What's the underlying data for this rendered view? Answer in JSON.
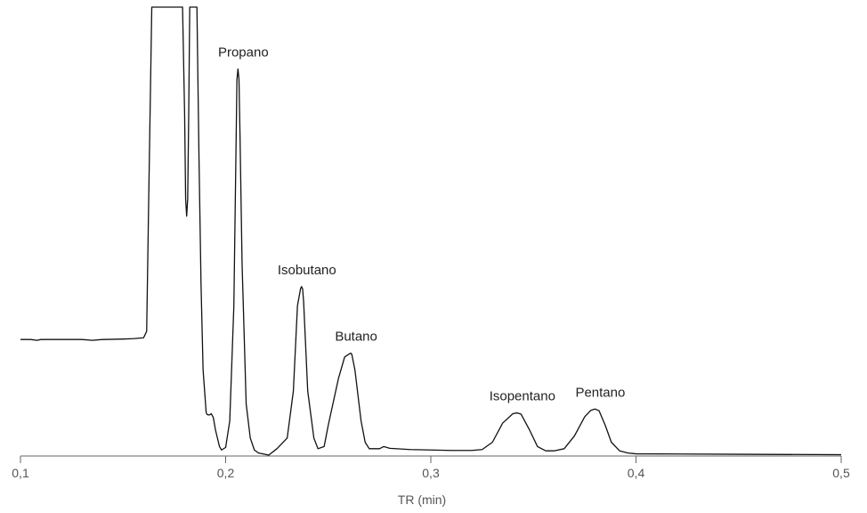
{
  "chart_data": {
    "type": "line",
    "title": "",
    "xlabel": "TR (min)",
    "ylabel": "",
    "xlim": [
      0.1,
      0.5
    ],
    "ylim": [
      0,
      1.05
    ],
    "x_ticks": [
      {
        "value": 0.1,
        "label": "0,1"
      },
      {
        "value": 0.2,
        "label": "0,2"
      },
      {
        "value": 0.3,
        "label": "0,3"
      },
      {
        "value": 0.4,
        "label": "0,4"
      },
      {
        "value": 0.5,
        "label": "0,5"
      }
    ],
    "grid": false,
    "y_axis_visible": false,
    "series": [
      {
        "x": [
          0.1,
          0.105,
          0.108,
          0.11,
          0.12,
          0.13,
          0.135,
          0.14,
          0.15,
          0.155,
          0.16,
          0.1615,
          0.1625,
          0.164,
          0.175,
          0.179,
          0.18,
          0.1805,
          0.181,
          0.1815,
          0.182,
          0.1825,
          0.1835,
          0.1845,
          0.186,
          0.187,
          0.188,
          0.189,
          0.1905,
          0.191,
          0.192,
          0.193,
          0.194,
          0.195,
          0.196,
          0.197,
          0.198,
          0.2,
          0.202,
          0.204,
          0.205,
          0.2055,
          0.206,
          0.2065,
          0.207,
          0.208,
          0.21,
          0.212,
          0.214,
          0.216,
          0.219,
          0.221,
          0.225,
          0.23,
          0.233,
          0.235,
          0.2365,
          0.237,
          0.2375,
          0.238,
          0.24,
          0.243,
          0.245,
          0.248,
          0.25,
          0.255,
          0.258,
          0.2605,
          0.261,
          0.2615,
          0.263,
          0.266,
          0.268,
          0.27,
          0.275,
          0.277,
          0.28,
          0.29,
          0.3,
          0.31,
          0.32,
          0.325,
          0.33,
          0.335,
          0.34,
          0.342,
          0.344,
          0.348,
          0.352,
          0.356,
          0.36,
          0.365,
          0.37,
          0.375,
          0.378,
          0.38,
          0.382,
          0.385,
          0.388,
          0.392,
          0.396,
          0.4,
          0.45,
          0.5
        ],
        "y": [
          0.271,
          0.271,
          0.269,
          0.271,
          0.271,
          0.271,
          0.269,
          0.271,
          0.272,
          0.273,
          0.275,
          0.29,
          0.6,
          1.05,
          1.05,
          1.05,
          0.8,
          0.6,
          0.56,
          0.6,
          0.8,
          1.05,
          1.05,
          1.05,
          1.05,
          0.7,
          0.4,
          0.2,
          0.1,
          0.095,
          0.094,
          0.097,
          0.088,
          0.06,
          0.04,
          0.02,
          0.012,
          0.018,
          0.08,
          0.35,
          0.7,
          0.88,
          0.905,
          0.88,
          0.75,
          0.45,
          0.12,
          0.04,
          0.012,
          0.005,
          0.002,
          0.0,
          0.015,
          0.04,
          0.15,
          0.35,
          0.39,
          0.395,
          0.39,
          0.36,
          0.15,
          0.04,
          0.015,
          0.02,
          0.07,
          0.18,
          0.23,
          0.238,
          0.239,
          0.236,
          0.2,
          0.08,
          0.03,
          0.015,
          0.015,
          0.02,
          0.016,
          0.013,
          0.012,
          0.011,
          0.011,
          0.013,
          0.03,
          0.075,
          0.097,
          0.099,
          0.096,
          0.06,
          0.02,
          0.01,
          0.01,
          0.015,
          0.045,
          0.09,
          0.105,
          0.108,
          0.104,
          0.07,
          0.03,
          0.01,
          0.005,
          0.003,
          0.002,
          0.001
        ]
      }
    ],
    "annotations": [
      {
        "text": "Propano",
        "x": 0.206,
        "y": 0.905
      },
      {
        "text": "Isobutano",
        "x": 0.237,
        "y": 0.395
      },
      {
        "text": "Butano",
        "x": 0.261,
        "y": 0.239
      },
      {
        "text": "Isopentano",
        "x": 0.342,
        "y": 0.099
      },
      {
        "text": "Pentano",
        "x": 0.38,
        "y": 0.108
      }
    ]
  }
}
